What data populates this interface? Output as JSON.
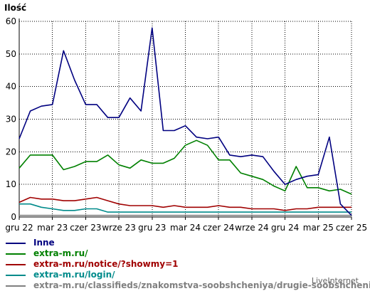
{
  "chart_data": {
    "type": "line",
    "ylabel": "Ilość",
    "ylim": [
      0,
      60
    ],
    "yticks": [
      0,
      10,
      20,
      30,
      40,
      50,
      60
    ],
    "x_tick_labels": [
      {
        "label": "gru 22",
        "index": 0
      },
      {
        "label": "mar 23",
        "index": 3
      },
      {
        "label": "czer 23",
        "index": 6
      },
      {
        "label": "wrze 23",
        "index": 9
      },
      {
        "label": "gru 23",
        "index": 12
      },
      {
        "label": "mar 24",
        "index": 15
      },
      {
        "label": "czer 24",
        "index": 18
      },
      {
        "label": "wrze 24",
        "index": 21
      },
      {
        "label": "gru 24",
        "index": 24
      },
      {
        "label": "mar 25",
        "index": 27
      },
      {
        "label": "czer 25",
        "index": 30
      }
    ],
    "grid": true,
    "legend_position": "bottom",
    "series": [
      {
        "name": "Inne",
        "color": "#000080",
        "values": [
          24,
          32.5,
          34,
          34.5,
          51,
          42,
          34.5,
          34.5,
          30.5,
          30.5,
          36.5,
          32.5,
          58,
          26.5,
          26.5,
          28,
          24.5,
          24,
          24.5,
          19,
          18.5,
          19,
          18.5,
          14,
          10,
          11.5,
          12.5,
          13,
          24.5,
          4,
          0.5
        ]
      },
      {
        "name": "extra-m.ru/",
        "color": "#008000",
        "values": [
          15,
          19,
          19,
          19,
          14.5,
          15.5,
          17,
          17,
          19,
          16,
          15,
          17.5,
          16.5,
          16.5,
          18,
          22,
          23.5,
          22,
          17.5,
          17.5,
          13.5,
          12.5,
          11.5,
          9.5,
          8,
          15.5,
          9,
          9,
          8,
          8.5,
          7
        ]
      },
      {
        "name": "extra-m.ru/notice/?showmy=1",
        "color": "#a00000",
        "values": [
          4.5,
          6,
          5.5,
          5.5,
          5,
          5,
          5.5,
          6,
          5,
          4,
          3.5,
          3.5,
          3.5,
          3,
          3.5,
          3,
          3,
          3,
          3.5,
          3,
          3,
          2.5,
          2.5,
          2.5,
          2,
          2.5,
          2.5,
          3,
          3,
          3,
          3
        ]
      },
      {
        "name": "extra-m.ru/login/",
        "color": "#008b8b",
        "values": [
          4,
          4,
          3,
          2.5,
          2,
          2,
          2.5,
          2.5,
          1.5,
          1.5,
          1.5,
          1.5,
          1.5,
          1.5,
          1.5,
          1.5,
          1.5,
          1.5,
          1.5,
          1.5,
          1.5,
          1.5,
          1.5,
          1.5,
          1.5,
          1.5,
          1.5,
          1.5,
          1.5,
          1.5,
          1.5
        ]
      },
      {
        "name": "extra-m.ru/classifieds/znakomstva-soobshcheniya/drugie-soobshcheniya/",
        "color": "#808080",
        "values": [
          0.5,
          0.5,
          0.5,
          0.5,
          0.5,
          0.5,
          0.5,
          0.5,
          0.5,
          0.5,
          0.5,
          0.5,
          0.5,
          0.5,
          0.5,
          0.5,
          0.5,
          0.5,
          0.5,
          0.5,
          0.5,
          0.5,
          0.5,
          0.5,
          0.5,
          0.5,
          0.5,
          0.5,
          0.5,
          0.5,
          0.5
        ]
      }
    ],
    "watermark": "LiveInternet"
  }
}
